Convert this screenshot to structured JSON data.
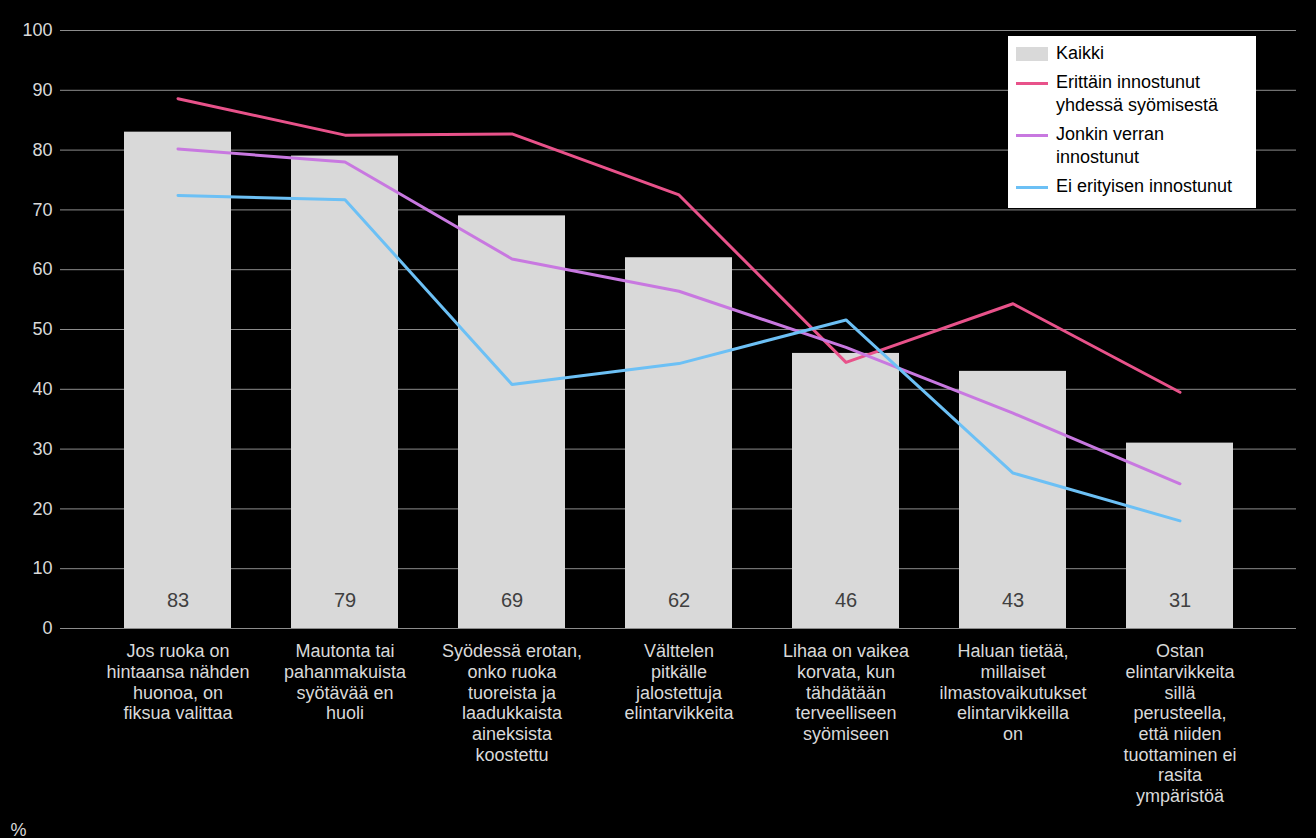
{
  "chart_data": {
    "type": "bar",
    "categories": [
      "Jos ruoka on hintaansa nähden huonoa, on fiksua valittaa",
      "Mautonta tai pahanmakuista syötävää en huoli",
      "Syödessä erotan, onko ruoka tuoreista ja laadukkaista aineksista koostettu",
      "Välttelen pitkälle jalostettuja elintarvikkeita",
      "Lihaa on vaikea korvata, kun tähdätään terveelliseen syömiseen",
      "Haluan tietää, millaiset ilmastovaikutukset elintarvikkeilla on",
      "Ostan elintarvikkeita sillä perusteella, että niiden tuottaminen ei rasita ympäristöä"
    ],
    "series": [
      {
        "name": "Kaikki",
        "type": "bar",
        "color": "#d9d9d9",
        "values": [
          83,
          79,
          69,
          62,
          46,
          43,
          31
        ],
        "data_labels": true
      },
      {
        "name": "Erittäin innostunut yhdessä syömisestä",
        "type": "line",
        "color": "#e8528a",
        "values": [
          88.6,
          82.5,
          82.7,
          72.5,
          44.5,
          54.3,
          39.5
        ]
      },
      {
        "name": "Jonkin verran innostunut",
        "type": "line",
        "color": "#c878e0",
        "values": [
          80.2,
          78,
          61.8,
          56.4,
          47,
          36,
          24.2
        ]
      },
      {
        "name": "Ei erityisen innostunut",
        "type": "line",
        "color": "#6cc0f5",
        "values": [
          72.4,
          71.7,
          40.8,
          44.3,
          51.6,
          26,
          18
        ]
      }
    ],
    "ylabel": "%",
    "ylim": [
      0,
      100
    ],
    "yticks": [
      0,
      10,
      20,
      30,
      40,
      50,
      60,
      70,
      80,
      90,
      100
    ],
    "grid": true,
    "legend": "top-right"
  }
}
